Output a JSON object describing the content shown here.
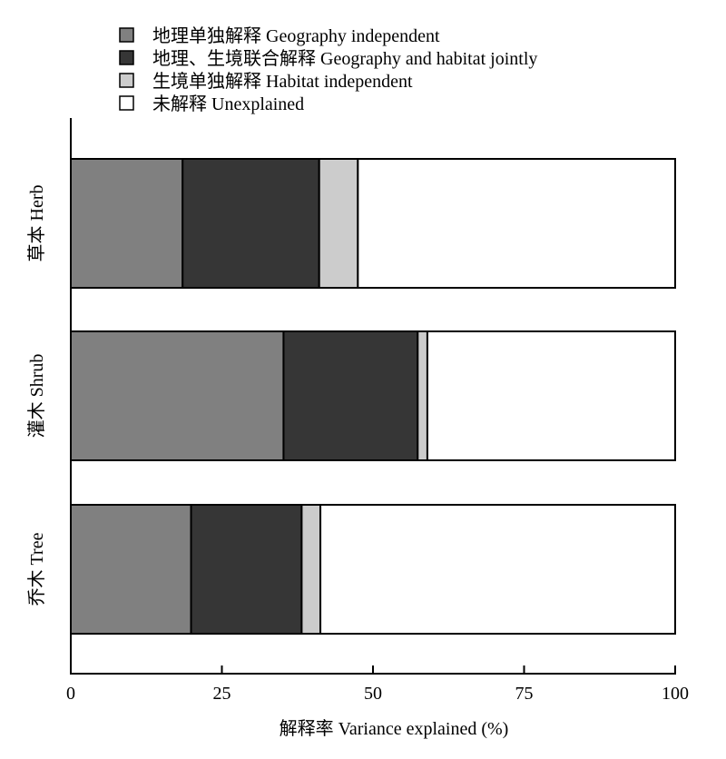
{
  "chart_data": {
    "type": "bar",
    "orientation": "horizontal",
    "stacked": true,
    "categories": [
      "草本 Herb",
      "灌木 Shrub",
      "乔木 Tree"
    ],
    "series": [
      {
        "name": "地理单独解释 Geography independent",
        "color": "#808080",
        "values": [
          18.5,
          35.2,
          19.9
        ]
      },
      {
        "name": "地理、生境联合解释 Geography and habitat jointly",
        "color": "#363636",
        "values": [
          22.6,
          22.2,
          18.3
        ]
      },
      {
        "name": "生境单独解释 Habitat independent",
        "color": "#cccccc",
        "values": [
          6.4,
          1.6,
          3.1
        ]
      },
      {
        "name": "未解释 Unexplained",
        "color": "#ffffff",
        "values": [
          52.5,
          41.0,
          58.7
        ]
      }
    ],
    "xlabel": "解释率 Variance explained (%)",
    "ylabel": "",
    "xlim": [
      0,
      100
    ],
    "xticks": [
      "0",
      "25",
      "50",
      "75",
      "100"
    ],
    "grid": false,
    "legend_position": "top"
  }
}
